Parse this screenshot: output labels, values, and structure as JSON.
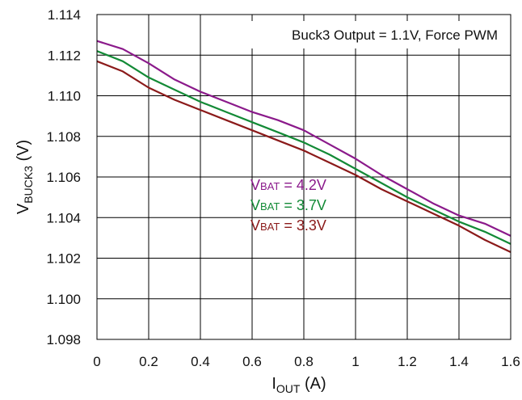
{
  "chart_data": {
    "type": "line",
    "title": "",
    "annotation": "Buck3 Output = 1.1V, Force PWM",
    "ylabel": {
      "main": "V",
      "sub": "BUCK3",
      "unit": " (V)"
    },
    "xlabel": {
      "main": "I",
      "sub": "OUT",
      "unit": " (A)"
    },
    "xlim": [
      0,
      1.6
    ],
    "ylim": [
      1.098,
      1.114
    ],
    "xticks": [
      "0",
      "0.2",
      "0.4",
      "0.6",
      "0.8",
      "1",
      "1.2",
      "1.4",
      "1.6"
    ],
    "yticks": [
      "1.098",
      "1.100",
      "1.102",
      "1.104",
      "1.106",
      "1.108",
      "1.110",
      "1.112",
      "1.114"
    ],
    "grid": true,
    "series": [
      {
        "name": "VBAT = 4.2V",
        "label": {
          "main": "V",
          "sub": "BAT",
          "rest": " = 4.2V"
        },
        "color": "#8B1A8B",
        "points": [
          [
            0,
            1.1127
          ],
          [
            0.1,
            1.1123
          ],
          [
            0.2,
            1.1116
          ],
          [
            0.3,
            1.1108
          ],
          [
            0.4,
            1.1102
          ],
          [
            0.5,
            1.1097
          ],
          [
            0.6,
            1.1092
          ],
          [
            0.7,
            1.1088
          ],
          [
            0.8,
            1.1083
          ],
          [
            0.9,
            1.1076
          ],
          [
            1.0,
            1.1069
          ],
          [
            1.1,
            1.1061
          ],
          [
            1.2,
            1.1054
          ],
          [
            1.3,
            1.1047
          ],
          [
            1.4,
            1.1041
          ],
          [
            1.5,
            1.1037
          ],
          [
            1.6,
            1.1031
          ]
        ]
      },
      {
        "name": "VBAT = 3.7V",
        "label": {
          "main": "V",
          "sub": "BAT",
          "rest": " = 3.7V"
        },
        "color": "#138A36",
        "points": [
          [
            0,
            1.1122
          ],
          [
            0.1,
            1.1117
          ],
          [
            0.2,
            1.1109
          ],
          [
            0.3,
            1.1103
          ],
          [
            0.4,
            1.1097
          ],
          [
            0.5,
            1.1092
          ],
          [
            0.6,
            1.1087
          ],
          [
            0.7,
            1.1082
          ],
          [
            0.8,
            1.1077
          ],
          [
            0.9,
            1.1071
          ],
          [
            1.0,
            1.1064
          ],
          [
            1.1,
            1.1057
          ],
          [
            1.2,
            1.105
          ],
          [
            1.3,
            1.1044
          ],
          [
            1.4,
            1.1038
          ],
          [
            1.5,
            1.1033
          ],
          [
            1.6,
            1.1027
          ]
        ]
      },
      {
        "name": "VBAT = 3.3V",
        "label": {
          "main": "V",
          "sub": "BAT",
          "rest": " = 3.3V"
        },
        "color": "#8B1A1A",
        "points": [
          [
            0,
            1.1117
          ],
          [
            0.1,
            1.1112
          ],
          [
            0.2,
            1.1104
          ],
          [
            0.3,
            1.1098
          ],
          [
            0.4,
            1.1093
          ],
          [
            0.5,
            1.1088
          ],
          [
            0.6,
            1.1083
          ],
          [
            0.7,
            1.1078
          ],
          [
            0.8,
            1.1073
          ],
          [
            0.9,
            1.1067
          ],
          [
            1.0,
            1.1061
          ],
          [
            1.1,
            1.1054
          ],
          [
            1.2,
            1.1048
          ],
          [
            1.3,
            1.1042
          ],
          [
            1.4,
            1.1036
          ],
          [
            1.5,
            1.1029
          ],
          [
            1.6,
            1.1023
          ]
        ]
      }
    ]
  }
}
